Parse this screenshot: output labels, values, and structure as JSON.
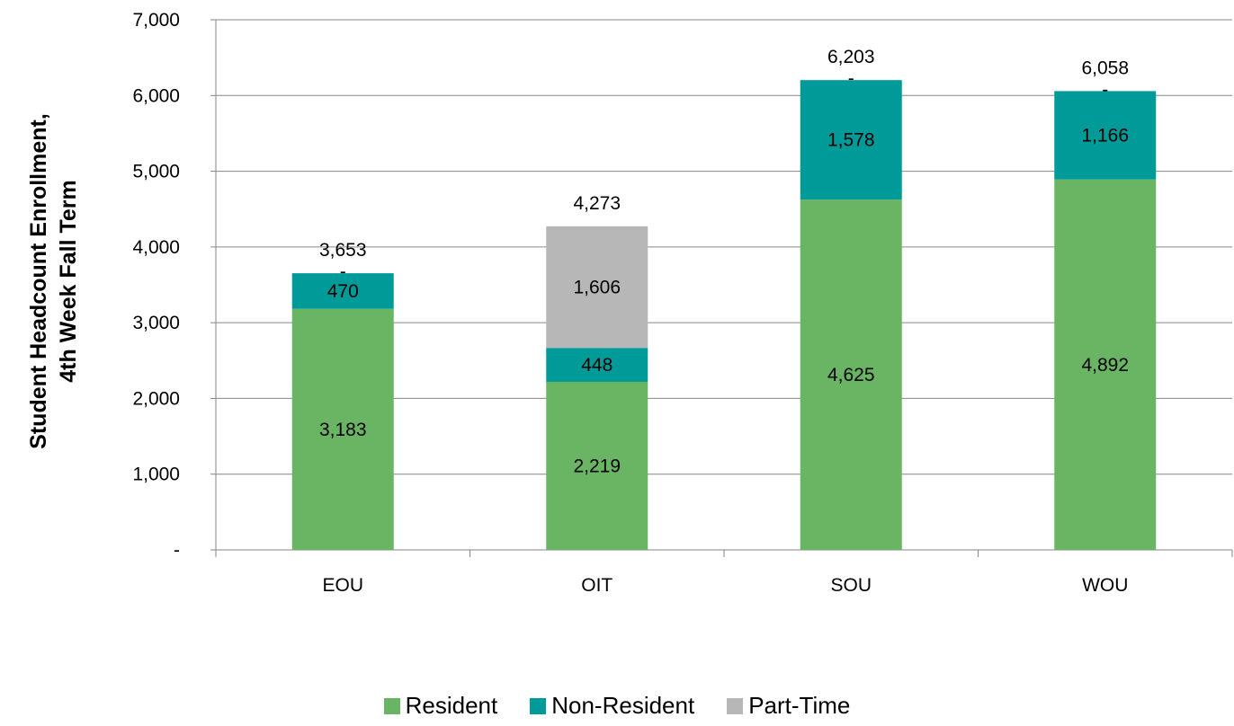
{
  "chart_data": {
    "type": "bar",
    "stacked": true,
    "title": "",
    "xlabel": "",
    "ylabel_line1": "Student Headcount Enrollment,",
    "ylabel_line2": "4th Week Fall Term",
    "categories": [
      "EOU",
      "OIT",
      "SOU",
      "WOU"
    ],
    "ylim": [
      0,
      7000
    ],
    "yticks": [
      0,
      1000,
      2000,
      3000,
      4000,
      5000,
      6000,
      7000
    ],
    "ytick_labels": [
      "-",
      "1,000",
      "2,000",
      "3,000",
      "4,000",
      "5,000",
      "6,000",
      "7,000"
    ],
    "grid": true,
    "legend_position": "bottom",
    "series": [
      {
        "name": "Resident",
        "color": "#69b563",
        "values": [
          3183,
          2219,
          4625,
          4892
        ],
        "labels": [
          "3,183",
          "2,219",
          "4,625",
          "4,892"
        ]
      },
      {
        "name": "Non-Resident",
        "color": "#009b98",
        "values": [
          470,
          448,
          1578,
          1166
        ],
        "labels": [
          "470",
          "448",
          "1,578",
          "1,166"
        ]
      },
      {
        "name": "Part-Time",
        "color": "#b7b7b7",
        "values": [
          0,
          1606,
          0,
          0
        ],
        "labels": [
          "-",
          "1,606",
          "-",
          "-"
        ]
      }
    ],
    "totals": [
      "3,653",
      "4,273",
      "6,203",
      "6,058"
    ]
  }
}
